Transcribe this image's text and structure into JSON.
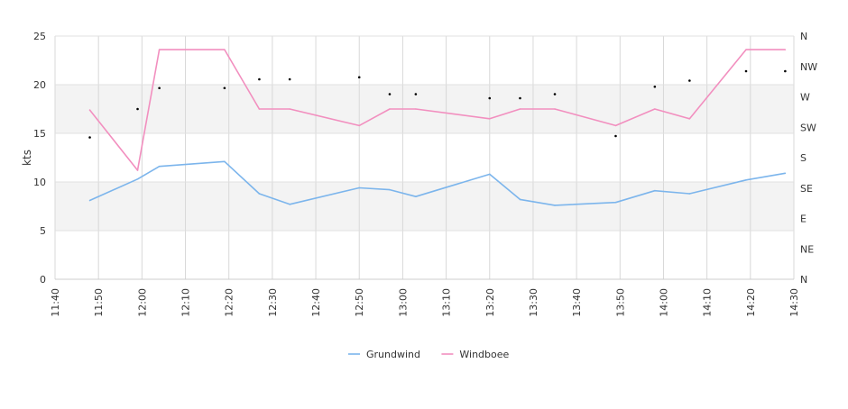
{
  "chart_data": {
    "type": "line",
    "ylabel": "kts",
    "x_range": [
      "11:40",
      "14:30"
    ],
    "ylim": [
      0,
      25
    ],
    "yticks": [
      "0",
      "5",
      "10",
      "15",
      "20",
      "25"
    ],
    "xticks": [
      "11:40",
      "11:50",
      "12:00",
      "12:10",
      "12:20",
      "12:30",
      "12:40",
      "12:50",
      "13:00",
      "13:10",
      "13:20",
      "13:30",
      "13:40",
      "13:50",
      "14:00",
      "14:10",
      "14:20",
      "14:30"
    ],
    "right_axis_labels": [
      "N",
      "NE",
      "E",
      "SE",
      "S",
      "SW",
      "W",
      "NW",
      "N"
    ],
    "grid": true,
    "legend_position": "bottom",
    "series": [
      {
        "name": "Grundwind",
        "color": "#7cb5ec",
        "x": [
          "11:48",
          "11:59",
          "12:04",
          "12:19",
          "12:27",
          "12:34",
          "12:50",
          "12:57",
          "13:03",
          "13:20",
          "13:27",
          "13:35",
          "13:49",
          "13:58",
          "14:06",
          "14:19",
          "14:28"
        ],
        "values": [
          8.1,
          10.3,
          11.6,
          12.1,
          8.8,
          7.7,
          9.4,
          9.2,
          8.5,
          10.8,
          8.2,
          7.6,
          7.9,
          9.1,
          8.8,
          10.2,
          10.9
        ]
      },
      {
        "name": "Windboee",
        "color": "#f28fbf",
        "x": [
          "11:48",
          "11:59",
          "12:04",
          "12:19",
          "12:27",
          "12:34",
          "12:50",
          "12:57",
          "13:03",
          "13:20",
          "13:27",
          "13:35",
          "13:49",
          "13:58",
          "14:06",
          "14:19",
          "14:28"
        ],
        "values": [
          17.4,
          11.2,
          23.6,
          23.6,
          17.5,
          17.5,
          15.8,
          17.5,
          17.5,
          16.5,
          17.5,
          17.5,
          15.8,
          17.5,
          16.5,
          23.6,
          23.6
        ]
      }
    ],
    "direction_points": {
      "unit": "degrees",
      "color": "#000000",
      "x": [
        "11:48",
        "11:59",
        "12:04",
        "12:19",
        "12:27",
        "12:34",
        "12:50",
        "12:57",
        "13:03",
        "13:20",
        "13:27",
        "13:35",
        "13:49",
        "13:58",
        "14:06",
        "14:19",
        "14:28"
      ],
      "values": [
        210,
        252,
        283,
        283,
        296,
        296,
        299,
        274,
        274,
        268,
        268,
        274,
        212,
        285,
        294,
        308,
        308
      ]
    }
  }
}
